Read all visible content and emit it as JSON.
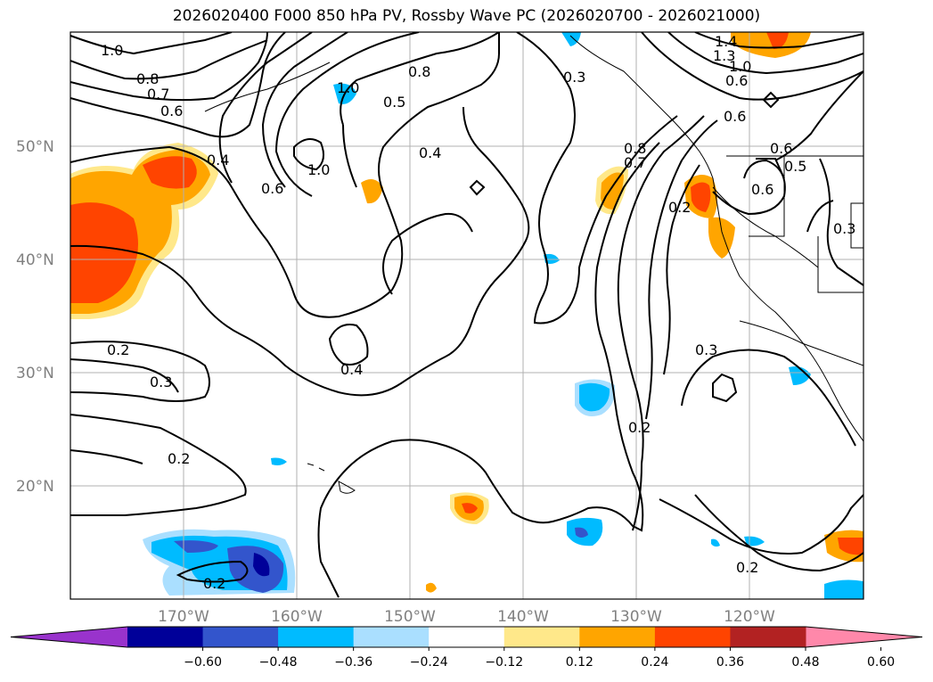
{
  "title": "2026020400 F000 850 hPa PV, Rossby Wave PC (2026020700 - 2026021000)",
  "map": {
    "lon_range": [
      -180,
      -110
    ],
    "lat_range": [
      10,
      60
    ],
    "lon_ticks": [
      -170,
      -160,
      -150,
      -140,
      -130,
      -120
    ],
    "lon_tick_labels": [
      "170°W",
      "160°W",
      "150°W",
      "140°W",
      "130°W",
      "120°W"
    ],
    "lat_ticks": [
      20,
      30,
      40,
      50
    ],
    "lat_tick_labels": [
      "20°N",
      "30°N",
      "40°N",
      "50°N"
    ],
    "grid": true
  },
  "contour_labels": [
    "1.0",
    "0.8",
    "0.7",
    "0.6",
    "0.4",
    "0.2",
    "0.3",
    "0.2",
    "0.2",
    "0.6",
    "1.0",
    "1.0",
    "0.5",
    "0.8",
    "0.4",
    "0.4",
    "0.3",
    "0.8",
    "0.7",
    "0.2",
    "0.2",
    "0.3",
    "0.2",
    "1.4",
    "1.3",
    "1.0",
    "0.6",
    "0.6",
    "0.6",
    "0.5",
    "0.6",
    "0.3"
  ],
  "colorbar": {
    "colors": [
      "#9933cc",
      "#000099",
      "#3355cc",
      "#00bbff",
      "#aadfff",
      "#ffffff",
      "#ffe88a",
      "#ffa500",
      "#ff4400",
      "#b22222",
      "#ff88aa"
    ],
    "tick_labels": [
      "−0.60",
      "−0.48",
      "−0.36",
      "−0.24",
      "−0.12",
      "0.12",
      "0.24",
      "0.36",
      "0.48",
      "0.60"
    ],
    "extend": "both"
  }
}
